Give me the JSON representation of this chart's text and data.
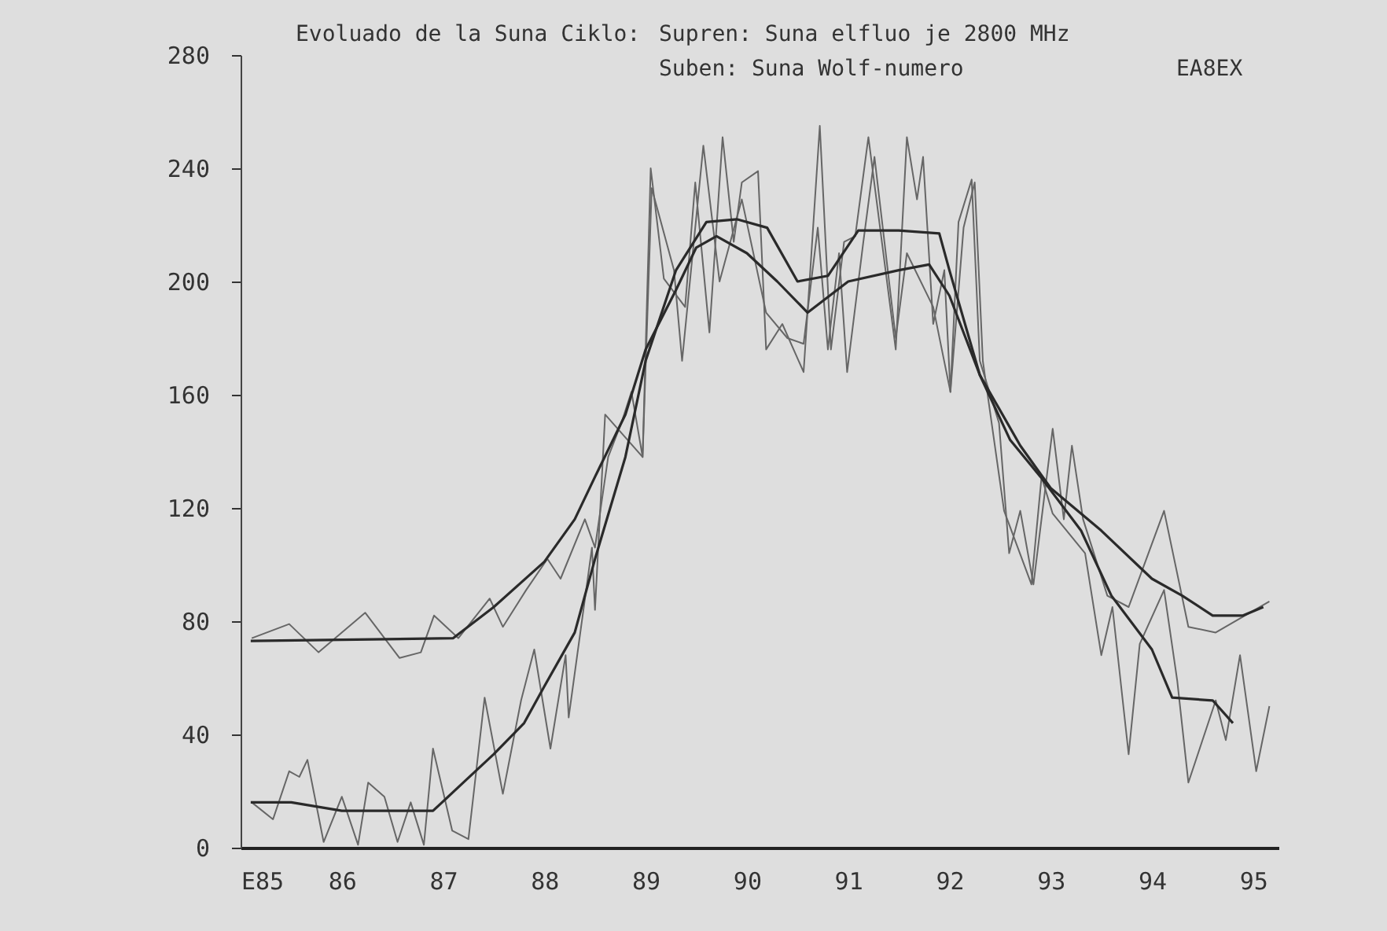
{
  "chart_data": {
    "type": "line",
    "title": "Evoluado de la Suna Ciklo:",
    "annotations": [
      "Supren: Suna elfluo je 2800 MHz",
      "Suben: Suna Wolf-numero",
      "EA8EX"
    ],
    "xlim": [
      85,
      95.25
    ],
    "ylim": [
      0,
      280
    ],
    "xticks": [
      {
        "value": 85,
        "label": "E85"
      },
      86,
      87,
      88,
      89,
      90,
      91,
      92,
      93,
      94,
      95
    ],
    "yticks": [
      0,
      40,
      80,
      120,
      160,
      200,
      240,
      280
    ],
    "marker": "none",
    "line_style": "solid",
    "series": [
      {
        "color": "#666666",
        "x": [
          85.11,
          85.48,
          85.77,
          86.23,
          86.57,
          86.78,
          86.91,
          87.15,
          87.46,
          87.59,
          87.82,
          88.03,
          88.16,
          88.4,
          88.5,
          88.63,
          88.76,
          88.86,
          88.97,
          89.05,
          89.18,
          89.39,
          89.49,
          89.63,
          89.76,
          89.87,
          89.95,
          90.11,
          90.19,
          90.35,
          90.56,
          90.72,
          90.83,
          90.96,
          91.07,
          91.2,
          91.47,
          91.58,
          91.68,
          91.74,
          91.84,
          91.95,
          92.01,
          92.09,
          92.22,
          92.3,
          92.49,
          92.59,
          92.7,
          92.83,
          93.02,
          93.13,
          93.21,
          93.32,
          93.56,
          93.77,
          94.12,
          94.36,
          94.63,
          95.16
        ],
        "values": [
          74,
          79,
          69,
          83,
          67,
          69,
          82,
          74,
          88,
          78,
          91,
          102,
          95,
          116,
          106,
          138,
          150,
          161,
          138,
          240,
          201,
          191,
          235,
          182,
          251,
          214,
          235,
          239,
          176,
          185,
          168,
          255,
          176,
          214,
          216,
          251,
          176,
          251,
          229,
          244,
          185,
          204,
          161,
          221,
          236,
          172,
          150,
          104,
          119,
          93,
          148,
          116,
          142,
          116,
          89,
          85,
          119,
          78,
          76,
          87
        ]
      },
      {
        "color": "#666666",
        "x": [
          85.11,
          85.32,
          85.48,
          85.58,
          85.66,
          85.82,
          86,
          86.16,
          86.26,
          86.42,
          86.55,
          86.68,
          86.81,
          86.9,
          87.09,
          87.25,
          87.41,
          87.59,
          87.77,
          87.9,
          88.06,
          88.21,
          88.24,
          88.47,
          88.5,
          88.6,
          88.97,
          89.06,
          89.28,
          89.36,
          89.57,
          89.73,
          89.95,
          90.19,
          90.4,
          90.56,
          90.7,
          90.8,
          90.91,
          90.99,
          91.15,
          91.26,
          91.47,
          91.58,
          91.84,
          92.01,
          92.14,
          92.25,
          92.33,
          92.54,
          92.81,
          92.91,
          93.02,
          93.34,
          93.5,
          93.61,
          93.77,
          93.88,
          94.12,
          94.25,
          94.36,
          94.63,
          94.73,
          94.87,
          95.03,
          95.16
        ],
        "values": [
          16,
          10,
          27,
          25,
          31,
          2,
          18,
          1,
          23,
          18,
          2,
          16,
          1,
          35,
          6,
          3,
          53,
          19,
          52,
          70,
          35,
          68,
          46,
          106,
          84,
          153,
          138,
          233,
          204,
          172,
          248,
          200,
          229,
          189,
          180,
          178,
          219,
          176,
          210,
          168,
          214,
          244,
          180,
          210,
          191,
          161,
          219,
          235,
          172,
          119,
          93,
          131,
          118,
          104,
          68,
          85,
          33,
          72,
          91,
          59,
          23,
          52,
          38,
          68,
          27,
          50
        ]
      },
      {
        "color": "#2a2a2a",
        "x": [
          85.1,
          87.1,
          87.5,
          88,
          88.3,
          88.5,
          88.8,
          89,
          89.3,
          89.5,
          89.7,
          90,
          90.3,
          90.6,
          91,
          91.5,
          91.8,
          92,
          92.3,
          92.7,
          93,
          93.5,
          94,
          94.3,
          94.6,
          94.9,
          95.1
        ],
        "values": [
          73,
          74,
          85,
          101,
          116,
          131,
          153,
          176,
          197,
          212,
          216,
          210,
          200,
          189,
          200,
          204,
          206,
          195,
          167,
          142,
          127,
          112,
          95,
          89,
          82,
          82,
          85
        ]
      },
      {
        "color": "#2a2a2a",
        "x": [
          85.1,
          85.5,
          86,
          86.5,
          86.9,
          87.2,
          87.5,
          87.8,
          88,
          88.3,
          88.5,
          88.8,
          89,
          89.3,
          89.6,
          89.9,
          90.2,
          90.5,
          90.8,
          91.1,
          91.5,
          91.9,
          92,
          92.3,
          92.6,
          92.9,
          93.3,
          93.6,
          94,
          94.2,
          94.6,
          94.8
        ],
        "values": [
          16,
          16,
          13,
          13,
          13,
          23,
          33,
          44,
          57,
          76,
          102,
          138,
          172,
          204,
          221,
          222,
          219,
          200,
          202,
          218,
          218,
          217,
          204,
          167,
          144,
          131,
          112,
          89,
          70,
          53,
          52,
          44
        ]
      }
    ]
  }
}
